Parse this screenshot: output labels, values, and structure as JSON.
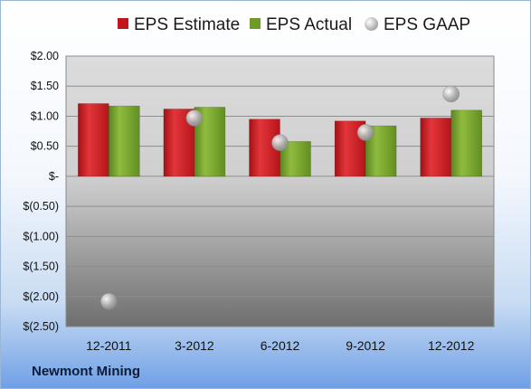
{
  "chart_data": {
    "type": "bar",
    "categories": [
      "12-2011",
      "3-2012",
      "6-2012",
      "9-2012",
      "12-2012"
    ],
    "series": [
      {
        "name": "EPS Estimate",
        "type": "bar",
        "color": "#c0171c",
        "values": [
          1.21,
          1.12,
          0.95,
          0.92,
          0.97
        ]
      },
      {
        "name": "EPS Actual",
        "type": "bar",
        "color": "#6f9a25",
        "values": [
          1.17,
          1.15,
          0.58,
          0.84,
          1.1
        ]
      },
      {
        "name": "EPS GAAP",
        "type": "scatter",
        "color": "#b5b5b5",
        "values": [
          -2.08,
          0.97,
          0.56,
          0.73,
          1.37
        ]
      }
    ],
    "ylim": [
      -2.5,
      2.0
    ],
    "yticks": [
      2.0,
      1.5,
      1.0,
      0.5,
      0,
      -0.5,
      -1.0,
      -1.5,
      -2.0,
      -2.5
    ],
    "ytick_labels": [
      "$2.00",
      "$1.50",
      "$1.00",
      "$0.50",
      "$-",
      "$(0.50)",
      "$(1.00)",
      "$(1.50)",
      "$(2.00)",
      "$(2.50)"
    ],
    "grid": true,
    "legend_position": "top"
  },
  "company": "Newmont Mining"
}
